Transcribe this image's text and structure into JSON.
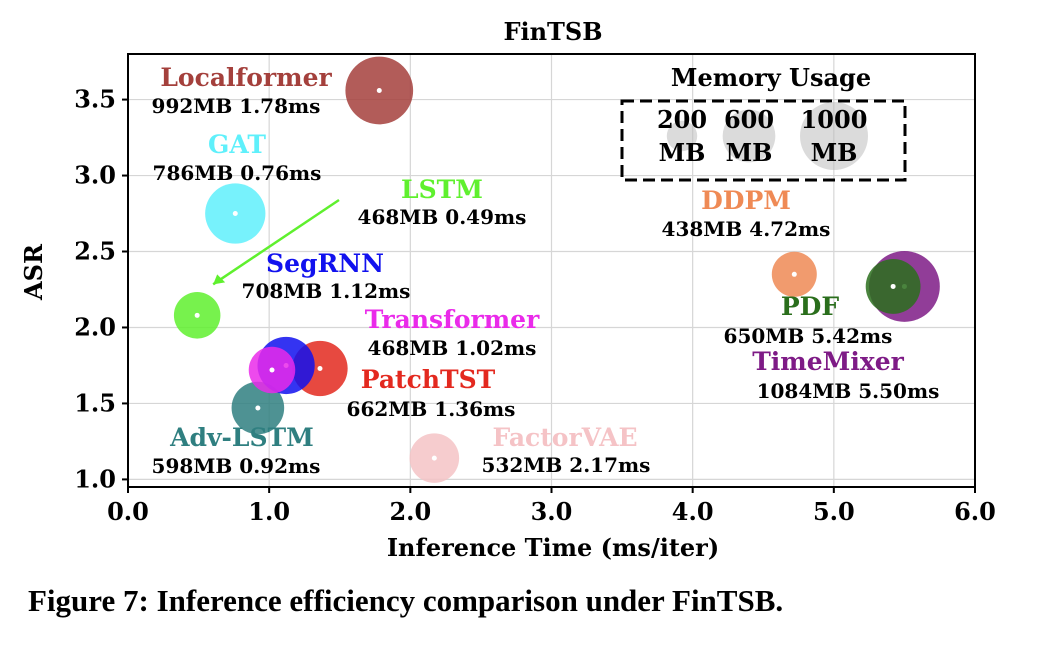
{
  "chart_data": {
    "type": "scatter",
    "title": "FinTSB",
    "xlabel": "Inference Time (ms/iter)",
    "ylabel": "ASR",
    "xlim": [
      0.0,
      6.0
    ],
    "ylim": [
      0.95,
      3.8
    ],
    "xticks": [
      0.0,
      1.0,
      2.0,
      3.0,
      4.0,
      5.0,
      6.0
    ],
    "xtick_labels": [
      "0.0",
      "1.0",
      "2.0",
      "3.0",
      "4.0",
      "5.0",
      "6.0"
    ],
    "yticks": [
      1.0,
      1.5,
      2.0,
      2.5,
      3.0,
      3.5
    ],
    "ytick_labels": [
      "1.0",
      "1.5",
      "2.0",
      "2.5",
      "3.0",
      "3.5"
    ],
    "grid": true,
    "size_encoding": "memory_mb",
    "legend": {
      "title": "Memory Usage",
      "placement": "top-right",
      "entries": [
        {
          "value": 200,
          "line1": "200",
          "line2": "MB"
        },
        {
          "value": 600,
          "line1": "600",
          "line2": "MB"
        },
        {
          "value": 1000,
          "line1": "1000",
          "line2": "MB"
        }
      ]
    },
    "points": [
      {
        "name": "Localformer",
        "x": 1.78,
        "y": 3.56,
        "memory_mb": 992,
        "label": "992MB 1.78ms",
        "color": "#a4403c"
      },
      {
        "name": "GAT",
        "x": 0.76,
        "y": 2.75,
        "memory_mb": 786,
        "label": "786MB 0.76ms",
        "color": "#5ff0fb"
      },
      {
        "name": "LSTM",
        "x": 0.49,
        "y": 2.08,
        "memory_mb": 468,
        "label": "468MB 0.49ms",
        "color": "#5ff02e"
      },
      {
        "name": "SegRNN",
        "x": 1.12,
        "y": 1.75,
        "memory_mb": 708,
        "label": "708MB 1.12ms",
        "color": "#1111ee"
      },
      {
        "name": "Transformer",
        "x": 1.02,
        "y": 1.72,
        "memory_mb": 468,
        "label": "468MB 1.02ms",
        "color": "#ea2aea"
      },
      {
        "name": "PatchTST",
        "x": 1.36,
        "y": 1.73,
        "memory_mb": 662,
        "label": "662MB 1.36ms",
        "color": "#e3291f"
      },
      {
        "name": "Adv-LSTM",
        "x": 0.92,
        "y": 1.47,
        "memory_mb": 598,
        "label": "598MB 0.92ms",
        "color": "#2f7f80"
      },
      {
        "name": "FactorVAE",
        "x": 2.17,
        "y": 1.14,
        "memory_mb": 532,
        "label": "532MB 2.17ms",
        "color": "#f5c3c6"
      },
      {
        "name": "DDPM",
        "x": 4.72,
        "y": 2.35,
        "memory_mb": 438,
        "label": "438MB 4.72ms",
        "color": "#ef8a55"
      },
      {
        "name": "TimeMixer",
        "x": 5.5,
        "y": 2.27,
        "memory_mb": 1084,
        "label": "1084MB 5.50ms",
        "color": "#7e1b86"
      },
      {
        "name": "PDF",
        "x": 5.42,
        "y": 2.27,
        "memory_mb": 650,
        "label": "650MB 5.42ms",
        "color": "#2a6e1c"
      }
    ]
  },
  "caption": "Figure 7: Inference efficiency comparison under FinTSB."
}
